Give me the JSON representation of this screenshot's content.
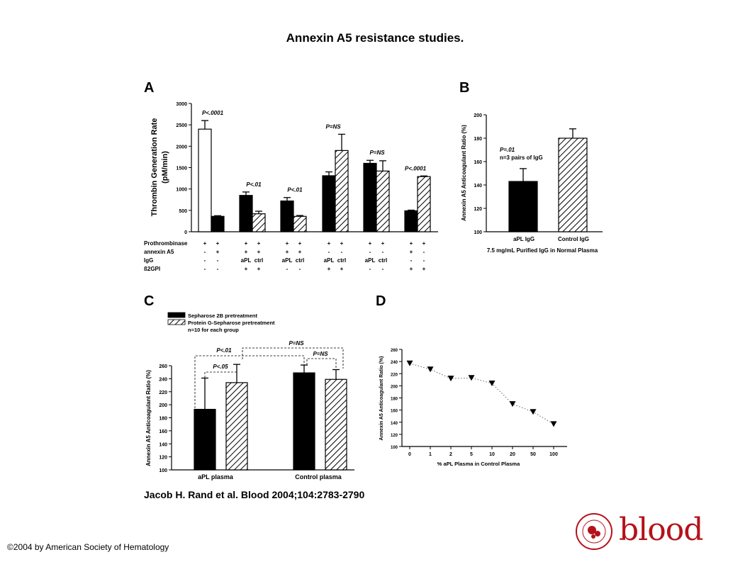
{
  "title": "Annexin A5 resistance studies.",
  "citation": "Jacob H. Rand et al. Blood 2004;104:2783-2790",
  "copyright": "©2004 by American Society of Hematology",
  "logo": {
    "text": "blood",
    "seal_text": "AMERICAN SOCIETY OF HEMATOLOGY",
    "color": "#b5121b"
  },
  "panels": {
    "A": "A",
    "B": "B",
    "C": "C",
    "D": "D"
  },
  "chart_data": [
    {
      "panel": "A",
      "type": "bar",
      "ylabel_line1": "Thrombin Generation Rate",
      "ylabel_line2": "(pM/min)",
      "ylim": [
        0,
        3000
      ],
      "yticks": [
        "0",
        "500",
        "1000",
        "1500",
        "2000",
        "2500",
        "3000"
      ],
      "groups": [
        {
          "annotation": "P<.0001",
          "bars": [
            {
              "style": "white",
              "value": 2400,
              "error": 200
            },
            {
              "style": "black",
              "value": 360,
              "error": 15
            }
          ]
        },
        {
          "annotation": "P<.01",
          "bars": [
            {
              "style": "black",
              "value": 850,
              "error": 80
            },
            {
              "style": "hatched",
              "value": 420,
              "error": 60
            }
          ]
        },
        {
          "annotation": "P<.01",
          "bars": [
            {
              "style": "black",
              "value": 720,
              "error": 80
            },
            {
              "style": "hatched",
              "value": 360,
              "error": 20
            }
          ]
        },
        {
          "annotation": "P=NS",
          "bars": [
            {
              "style": "black",
              "value": 1310,
              "error": 90
            },
            {
              "style": "hatched",
              "value": 1900,
              "error": 380
            }
          ]
        },
        {
          "annotation": "P=NS",
          "bars": [
            {
              "style": "black",
              "value": 1600,
              "error": 70
            },
            {
              "style": "hatched",
              "value": 1420,
              "error": 240
            }
          ]
        },
        {
          "annotation": "P<.0001",
          "bars": [
            {
              "style": "black",
              "value": 490,
              "error": 15
            },
            {
              "style": "hatched",
              "value": 1290,
              "error": 15
            }
          ]
        }
      ],
      "table": {
        "rows": [
          {
            "label": "Prothrombinase",
            "cells": [
              "+",
              "+",
              "+",
              "+",
              "+",
              "+",
              "+",
              "+",
              "+",
              "+",
              "+",
              "+"
            ]
          },
          {
            "label": "annexin A5",
            "cells": [
              "-",
              "+",
              "+",
              "+",
              "+",
              "+",
              "-",
              "-",
              "-",
              "-",
              "+",
              "-"
            ]
          },
          {
            "label": "IgG",
            "cells": [
              "-",
              "-",
              "aPL",
              "ctrl",
              "aPL",
              "ctrl",
              "aPL",
              "ctrl",
              "aPL",
              "ctrl",
              "-",
              "-"
            ]
          },
          {
            "label": "ß2GPI",
            "cells": [
              "-",
              "-",
              "+",
              "+",
              "-",
              "-",
              "+",
              "+",
              "-",
              "-",
              "+",
              "+"
            ]
          }
        ]
      }
    },
    {
      "panel": "B",
      "type": "bar",
      "ylabel": "Annexin A5 Anticoagulant Ratio (%)",
      "xlabel": "7.5 mg/mL Purified IgG in Normal Plasma",
      "ylim": [
        100,
        200
      ],
      "yticks": [
        "100",
        "120",
        "140",
        "160",
        "180",
        "200"
      ],
      "categories": [
        "aPL IgG",
        "Control IgG"
      ],
      "bars": [
        {
          "style": "black",
          "value": 143,
          "error": 11
        },
        {
          "style": "hatched",
          "value": 180,
          "error": 8
        }
      ],
      "annotation_line1": "P=.01",
      "annotation_line2": "n=3 pairs of IgG"
    },
    {
      "panel": "C",
      "type": "bar",
      "ylabel": "Annexin A5 Anticoagulant Ratio (%)",
      "ylim": [
        100,
        260
      ],
      "yticks": [
        "100",
        "120",
        "140",
        "160",
        "180",
        "200",
        "220",
        "240",
        "260"
      ],
      "categories": [
        "aPL plasma",
        "Control plasma"
      ],
      "series": [
        {
          "name": "Sepharose 2B pretreatment",
          "style": "black",
          "values": [
            193,
            249
          ],
          "errors": [
            48,
            12
          ]
        },
        {
          "name": "Protein G-Sepharose pretreatment",
          "style": "hatched",
          "values": [
            234,
            239
          ],
          "errors": [
            28,
            15
          ]
        }
      ],
      "legend_note": "n=10 for each group",
      "comparisons": [
        "P<.05",
        "P<.01",
        "P=NS",
        "P=NS"
      ]
    },
    {
      "panel": "D",
      "type": "scatter",
      "ylabel": "Annexin A5 Anticoagulant Ratio (%)",
      "xlabel": "% aPL Plasma in Control Plasma",
      "ylim": [
        100,
        260
      ],
      "yticks": [
        "100",
        "120",
        "140",
        "160",
        "180",
        "200",
        "220",
        "240",
        "260"
      ],
      "x": [
        "0",
        "1",
        "2",
        "5",
        "10",
        "20",
        "50",
        "100"
      ],
      "y": [
        237,
        227,
        212,
        213,
        204,
        170,
        157,
        137
      ]
    }
  ]
}
